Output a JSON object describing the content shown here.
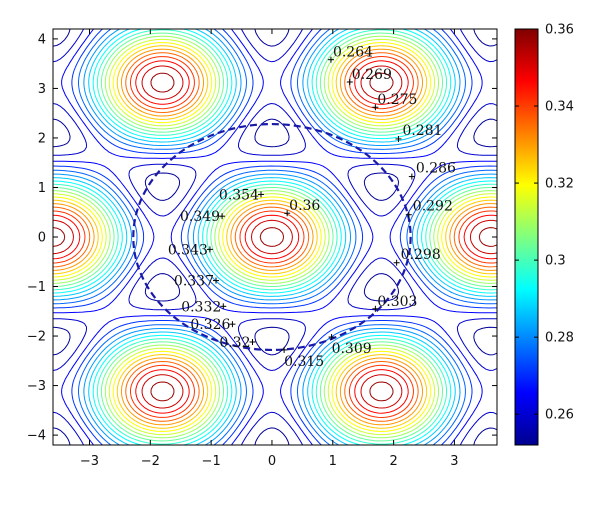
{
  "chart_data": {
    "type": "contour",
    "xlim": [
      -3.6,
      3.7
    ],
    "ylim": [
      -4.2,
      4.2
    ],
    "xticks": [
      -3,
      -2,
      -1,
      0,
      1,
      2,
      3
    ],
    "yticks": [
      -4,
      -3,
      -2,
      -1,
      0,
      1,
      2,
      3,
      4
    ],
    "xtick_labels": [
      "−3",
      "−2",
      "−1",
      "0",
      "1",
      "2",
      "3"
    ],
    "ytick_labels": [
      "−4",
      "−3",
      "−2",
      "−1",
      "0",
      "1",
      "2",
      "3",
      "4"
    ],
    "colorbar": {
      "range": [
        0.252,
        0.36
      ],
      "ticks": [
        0.26,
        0.28,
        0.3,
        0.32,
        0.34,
        0.36
      ],
      "tick_labels": [
        "0.26",
        "0.28",
        "0.3",
        "0.32",
        "0.34",
        "0.36"
      ],
      "colormap": "jet"
    },
    "dashed_circle": {
      "center": [
        0.0,
        0.0
      ],
      "radius": 2.28,
      "color": "#1a1aa8"
    },
    "annotations": [
      {
        "text": "0.264",
        "x": 0.97,
        "y": 3.58
      },
      {
        "text": "0.269",
        "x": 1.28,
        "y": 3.13
      },
      {
        "text": "0.275",
        "x": 1.7,
        "y": 2.62
      },
      {
        "text": "0.281",
        "x": 2.08,
        "y": 1.98
      },
      {
        "text": "0.286",
        "x": 2.3,
        "y": 1.22
      },
      {
        "text": "0.292",
        "x": 2.25,
        "y": 0.45
      },
      {
        "text": "0.298",
        "x": 2.05,
        "y": -0.52
      },
      {
        "text": "0.303",
        "x": 1.7,
        "y": -1.45
      },
      {
        "text": "0.309",
        "x": 0.98,
        "y": -2.02
      },
      {
        "text": "0.315",
        "x": 0.2,
        "y": -2.28
      },
      {
        "text": "0.32",
        "x": -0.32,
        "y": -2.12
      },
      {
        "text": "0.326",
        "x": -0.65,
        "y": -1.76
      },
      {
        "text": "0.332",
        "x": -0.8,
        "y": -1.4
      },
      {
        "text": "0.337",
        "x": -0.92,
        "y": -0.88
      },
      {
        "text": "0.343",
        "x": -1.02,
        "y": -0.25
      },
      {
        "text": "0.349",
        "x": -0.82,
        "y": 0.42
      },
      {
        "text": "0.354",
        "x": -0.18,
        "y": 0.86
      },
      {
        "text": "0.36",
        "x": 0.25,
        "y": 0.48
      }
    ]
  }
}
